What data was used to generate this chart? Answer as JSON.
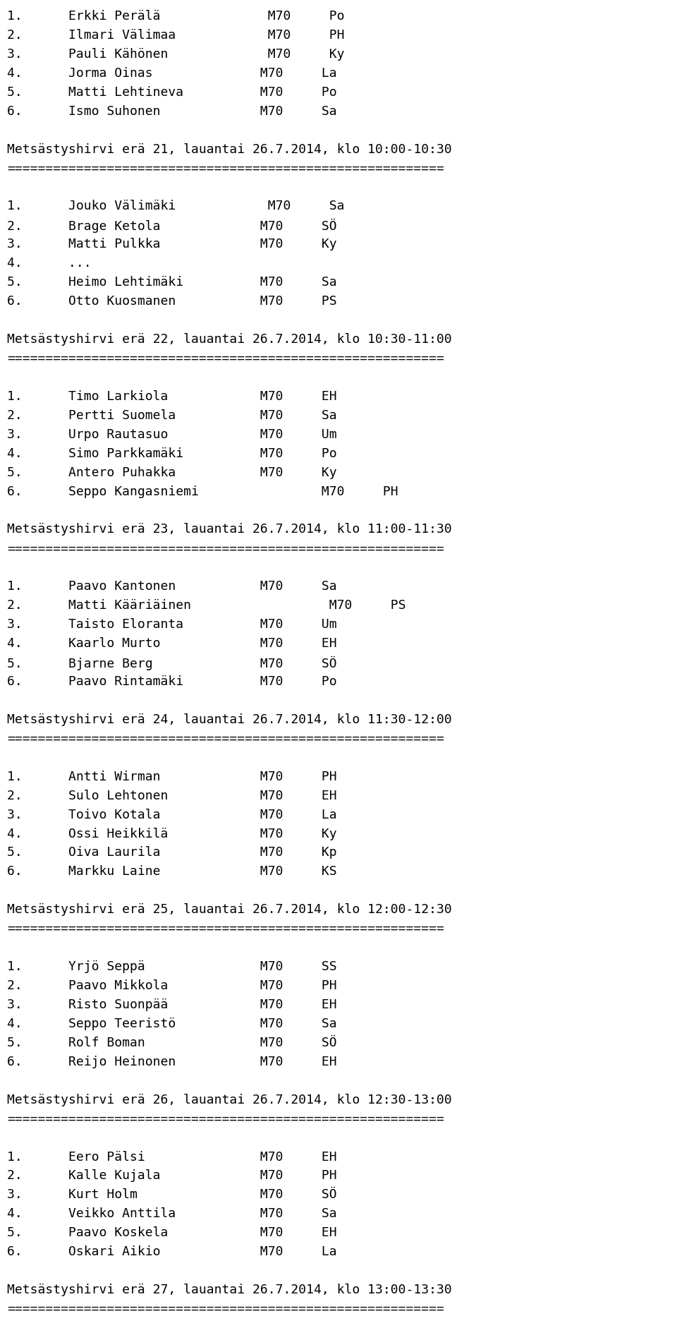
{
  "background_color": "#ffffff",
  "font_family": "monospace",
  "font_size": 13.0,
  "text_color": "#000000",
  "lines": [
    "1.      Erkki Perälä              M70     Po",
    "2.      Ilmari Välimaa            M70     PH",
    "3.      Pauli Kähönen             M70     Ky",
    "4.      Jorma Oinas              M70     La",
    "5.      Matti Lehtineva          M70     Po",
    "6.      Ismo Suhonen             M70     Sa",
    "",
    "Metsästyshirvi erä 21, lauantai 26.7.2014, klo 10:00-10:30",
    "=========================================================",
    "",
    "1.      Jouko Välimäki            M70     Sa",
    "2.      Brage Ketola             M70     SÖ",
    "3.      Matti Pulkka             M70     Ky",
    "4.      ...",
    "5.      Heimo Lehtimäki          M70     Sa",
    "6.      Otto Kuosmanen           M70     PS",
    "",
    "Metsästyshirvi erä 22, lauantai 26.7.2014, klo 10:30-11:00",
    "=========================================================",
    "",
    "1.      Timo Larkiola            M70     EH",
    "2.      Pertti Suomela           M70     Sa",
    "3.      Urpo Rautasuo            M70     Um",
    "4.      Simo Parkkamäki          M70     Po",
    "5.      Antero Puhakka           M70     Ky",
    "6.      Seppo Kangasniemi                M70     PH",
    "",
    "Metsästyshirvi erä 23, lauantai 26.7.2014, klo 11:00-11:30",
    "=========================================================",
    "",
    "1.      Paavo Kantonen           M70     Sa",
    "2.      Matti Kääriäinen                  M70     PS",
    "3.      Taisto Eloranta          M70     Um",
    "4.      Kaarlo Murto             M70     EH",
    "5.      Bjarne Berg              M70     SÖ",
    "6.      Paavo Rintamäki          M70     Po",
    "",
    "Metsästyshirvi erä 24, lauantai 26.7.2014, klo 11:30-12:00",
    "=========================================================",
    "",
    "1.      Antti Wirman             M70     PH",
    "2.      Sulo Lehtonen            M70     EH",
    "3.      Toivo Kotala             M70     La",
    "4.      Ossi Heikkilä            M70     Ky",
    "5.      Oiva Laurila             M70     Kp",
    "6.      Markku Laine             M70     KS",
    "",
    "Metsästyshirvi erä 25, lauantai 26.7.2014, klo 12:00-12:30",
    "=========================================================",
    "",
    "1.      Yrjö Seppä               M70     SS",
    "2.      Paavo Mikkola            M70     PH",
    "3.      Risto Suonpää            M70     EH",
    "4.      Seppo Teeristö           M70     Sa",
    "5.      Rolf Boman               M70     SÖ",
    "6.      Reijo Heinonen           M70     EH",
    "",
    "Metsästyshirvi erä 26, lauantai 26.7.2014, klo 12:30-13:00",
    "=========================================================",
    "",
    "1.      Eero Pälsi               M70     EH",
    "2.      Kalle Kujala             M70     PH",
    "3.      Kurt Holm                M70     SÖ",
    "4.      Veikko Anttila           M70     Sa",
    "5.      Paavo Koskela            M70     EH",
    "6.      Oskari Aikio             M70     La",
    "",
    "Metsästyshirvi erä 27, lauantai 26.7.2014, klo 13:00-13:30",
    "========================================================="
  ]
}
